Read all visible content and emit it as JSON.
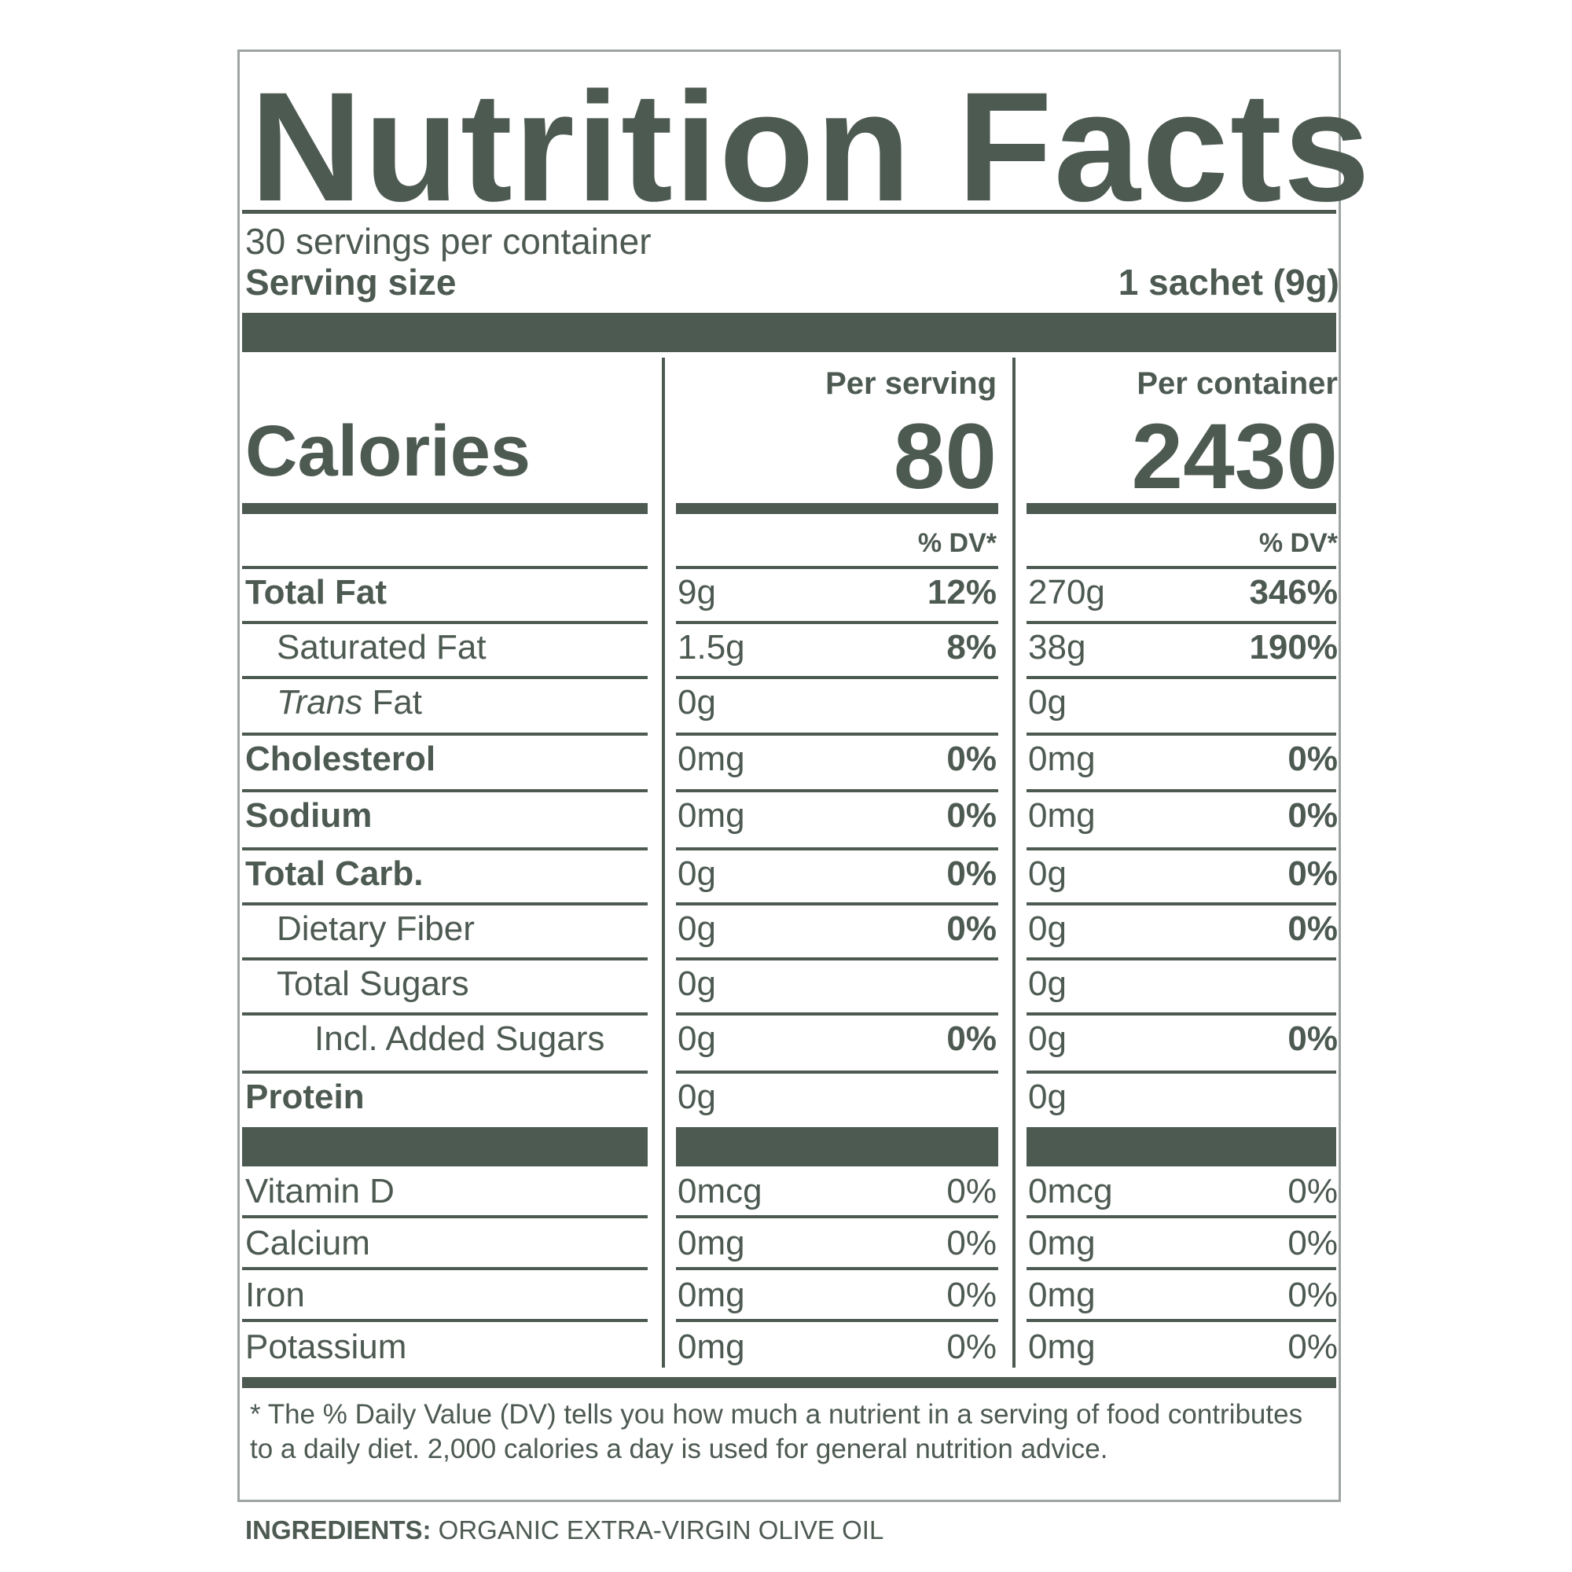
{
  "label": {
    "title": "Nutrition Facts",
    "servings_per_container": "30 servings per container",
    "serving_size_label": "Serving size",
    "serving_size_value": "1 sachet (9g)",
    "col_per_serving": "Per serving",
    "col_per_container": "Per container",
    "calories_label": "Calories",
    "calories_per_serving": "80",
    "calories_per_container": "2430",
    "dv_header": "% DV*",
    "nutrients": [
      {
        "name": "Total Fat",
        "serving_amount": "9g",
        "serving_dv": "12%",
        "container_amount": "270g",
        "container_dv": "346%"
      },
      {
        "name": "Saturated Fat",
        "serving_amount": "1.5g",
        "serving_dv": "8%",
        "container_amount": "38g",
        "container_dv": "190%"
      },
      {
        "name_italic": "Trans",
        "name": " Fat",
        "serving_amount": "0g",
        "serving_dv": "",
        "container_amount": "0g",
        "container_dv": ""
      },
      {
        "name": "Cholesterol",
        "serving_amount": "0mg",
        "serving_dv": "0%",
        "container_amount": "0mg",
        "container_dv": "0%"
      },
      {
        "name": "Sodium",
        "serving_amount": "0mg",
        "serving_dv": "0%",
        "container_amount": "0mg",
        "container_dv": "0%"
      },
      {
        "name": "Total Carb.",
        "serving_amount": "0g",
        "serving_dv": "0%",
        "container_amount": "0g",
        "container_dv": "0%"
      },
      {
        "name": "Dietary Fiber",
        "serving_amount": "0g",
        "serving_dv": "0%",
        "container_amount": "0g",
        "container_dv": "0%"
      },
      {
        "name": "Total Sugars",
        "serving_amount": "0g",
        "serving_dv": "",
        "container_amount": "0g",
        "container_dv": ""
      },
      {
        "name": "Incl. Added Sugars",
        "serving_amount": "0g",
        "serving_dv": "0%",
        "container_amount": "0g",
        "container_dv": "0%"
      },
      {
        "name": "Protein",
        "serving_amount": "0g",
        "serving_dv": "",
        "container_amount": "0g",
        "container_dv": ""
      }
    ],
    "micronutrients": [
      {
        "name": "Vitamin D",
        "serving_amount": "0mcg",
        "serving_dv": "0%",
        "container_amount": "0mcg",
        "container_dv": "0%"
      },
      {
        "name": "Calcium",
        "serving_amount": "0mg",
        "serving_dv": "0%",
        "container_amount": "0mg",
        "container_dv": "0%"
      },
      {
        "name": "Iron",
        "serving_amount": "0mg",
        "serving_dv": "0%",
        "container_amount": "0mg",
        "container_dv": "0%"
      },
      {
        "name": "Potassium",
        "serving_amount": "0mg",
        "serving_dv": "0%",
        "container_amount": "0mg",
        "container_dv": "0%"
      }
    ],
    "footnote": "* The % Daily Value (DV) tells you how much a nutrient in a serving of food contributes to a daily diet. 2,000 calories a day is used for general nutrition advice.",
    "ingredients_label": "INGREDIENTS:",
    "ingredients_value": " ORGANIC EXTRA-VIRGIN OLIVE OIL"
  },
  "colors": {
    "ink": "#4d5a52",
    "border": "#9ea5a1"
  }
}
